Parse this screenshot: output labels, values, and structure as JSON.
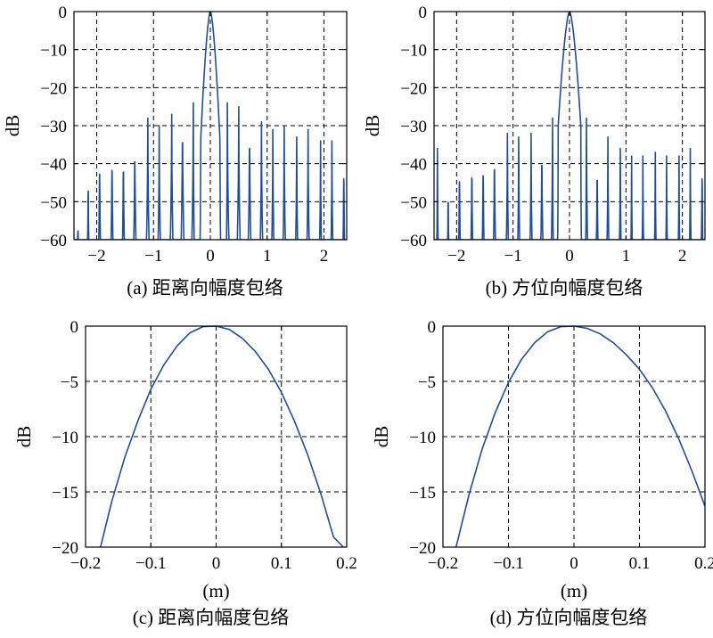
{
  "colors": {
    "line": "#1f4e9e",
    "axes": "#000000",
    "background": "#ffffff"
  },
  "chart_data": [
    {
      "type": "line",
      "caption": "(a) 距离向幅度包络",
      "ylabel": "dB",
      "xlabel": "",
      "xlim": [
        -2.4,
        2.4
      ],
      "ylim": [
        -60,
        0
      ],
      "xticks": [
        -2,
        -1,
        0,
        1,
        2
      ],
      "xtick_labels": [
        "−2",
        "−1",
        "0",
        "1",
        "2"
      ],
      "yticks": [
        0,
        -10,
        -20,
        -30,
        -40,
        -50,
        -60
      ],
      "ytick_labels": [
        "0",
        "−10",
        "−20",
        "−30",
        "−40",
        "−50",
        "−60"
      ],
      "grid": true,
      "series": [
        {
          "mainlobe_halfwidth": 0.17,
          "mainlobe_floor": -34,
          "sidelobe_peaks": [
            [
              -2.33,
              -48
            ],
            [
              -2.15,
              -38
            ],
            [
              -1.95,
              -34
            ],
            [
              -1.73,
              -33
            ],
            [
              -1.53,
              -33
            ],
            [
              -1.33,
              -31
            ],
            [
              -1.1,
              -28
            ],
            [
              -0.9,
              -30
            ],
            [
              -0.68,
              -27
            ],
            [
              -0.49,
              -25
            ],
            [
              -0.3,
              -24
            ],
            [
              -0.15,
              -20
            ],
            [
              0.15,
              -19
            ],
            [
              0.3,
              -24
            ],
            [
              0.5,
              -25
            ],
            [
              0.69,
              -27
            ],
            [
              0.9,
              -29
            ],
            [
              1.1,
              -31
            ],
            [
              1.3,
              -30
            ],
            [
              1.52,
              -33
            ],
            [
              1.72,
              -31
            ],
            [
              1.94,
              -34
            ],
            [
              2.14,
              -34
            ],
            [
              2.35,
              -35
            ]
          ]
        }
      ]
    },
    {
      "type": "line",
      "caption": "(b) 方位向幅度包络",
      "ylabel": "dB",
      "xlabel": "",
      "xlim": [
        -2.4,
        2.4
      ],
      "ylim": [
        -60,
        0
      ],
      "xticks": [
        -2,
        -1,
        0,
        1,
        2
      ],
      "xtick_labels": [
        "−2",
        "−1",
        "0",
        "1",
        "2"
      ],
      "yticks": [
        0,
        -10,
        -20,
        -30,
        -40,
        -50,
        -60
      ],
      "ytick_labels": [
        "0",
        "−10",
        "−20",
        "−30",
        "−40",
        "−50",
        "−60"
      ],
      "grid": true,
      "series": [
        {
          "mainlobe_halfwidth": 0.2,
          "mainlobe_floor": -30,
          "sidelobe_peaks": [
            [
              -2.34,
              -36
            ],
            [
              -2.15,
              -41
            ],
            [
              -1.95,
              -36
            ],
            [
              -1.73,
              -35
            ],
            [
              -1.53,
              -34
            ],
            [
              -1.33,
              -33
            ],
            [
              -1.1,
              -32
            ],
            [
              -0.9,
              -33
            ],
            [
              -0.68,
              -32
            ],
            [
              -0.49,
              -31
            ],
            [
              -0.3,
              -28
            ],
            [
              -0.15,
              -20
            ],
            [
              0.3,
              -28
            ],
            [
              0.49,
              -35
            ],
            [
              0.68,
              -33
            ],
            [
              0.9,
              -36
            ],
            [
              1.1,
              -38
            ],
            [
              1.3,
              -38
            ],
            [
              1.52,
              -37
            ],
            [
              1.72,
              -38
            ],
            [
              1.94,
              -38
            ],
            [
              2.14,
              -36
            ],
            [
              2.35,
              -35
            ]
          ]
        }
      ]
    },
    {
      "type": "line",
      "caption": "(c) 距离向幅度包络",
      "ylabel": "dB",
      "xlabel": "(m)",
      "xlim": [
        -0.2,
        0.2
      ],
      "ylim": [
        -20,
        0
      ],
      "xticks": [
        -0.2,
        -0.1,
        0,
        0.1,
        0.2
      ],
      "xtick_labels": [
        "−0.2",
        "−0.1",
        "0",
        "0.1",
        "0.2"
      ],
      "yticks": [
        0,
        -5,
        -10,
        -15,
        -20
      ],
      "ytick_labels": [
        "0",
        "−5",
        "−10",
        "−15",
        "−20"
      ],
      "grid": true,
      "series": [
        {
          "x": [
            -0.177,
            -0.16,
            -0.14,
            -0.12,
            -0.1,
            -0.08,
            -0.06,
            -0.04,
            -0.02,
            0,
            0.02,
            0.04,
            0.06,
            0.08,
            0.1,
            0.12,
            0.14,
            0.16,
            0.18,
            0.195
          ],
          "y": [
            -20,
            -15.9,
            -11.9,
            -8.6,
            -5.7,
            -3.5,
            -1.8,
            -0.6,
            -0.05,
            0,
            -0.3,
            -1.1,
            -2.3,
            -3.9,
            -6,
            -8.6,
            -11.6,
            -15.1,
            -19.1,
            -20
          ]
        }
      ]
    },
    {
      "type": "line",
      "caption": "(d) 方位向幅度包络",
      "ylabel": "dB",
      "xlabel": "(m)",
      "xlim": [
        -0.2,
        0.2
      ],
      "ylim": [
        -20,
        0
      ],
      "xticks": [
        -0.2,
        -0.1,
        0,
        0.1,
        0.2
      ],
      "xtick_labels": [
        "−0.2",
        "−0.1",
        "0",
        "0.1",
        "0.2"
      ],
      "yticks": [
        0,
        -5,
        -10,
        -15,
        -20
      ],
      "ytick_labels": [
        "0",
        "−5",
        "−10",
        "−15",
        "−20"
      ],
      "grid": true,
      "series": [
        {
          "x": [
            -0.18,
            -0.16,
            -0.14,
            -0.12,
            -0.1,
            -0.08,
            -0.06,
            -0.04,
            -0.02,
            0,
            0.02,
            0.04,
            0.06,
            0.08,
            0.1,
            0.12,
            0.14,
            0.16,
            0.18,
            0.2
          ],
          "y": [
            -20,
            -15.2,
            -11.1,
            -7.8,
            -5.1,
            -3,
            -1.5,
            -0.5,
            -0.05,
            0,
            -0.2,
            -0.7,
            -1.5,
            -2.6,
            -3.9,
            -5.6,
            -7.7,
            -10.2,
            -13.1,
            -16.3
          ]
        }
      ]
    }
  ]
}
